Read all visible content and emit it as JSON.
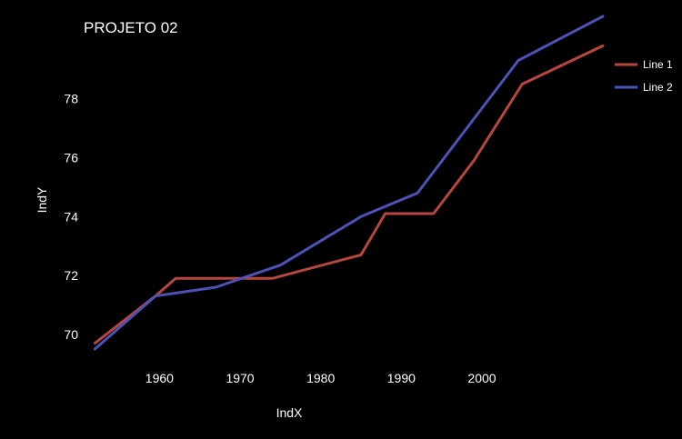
{
  "chart_data": {
    "type": "line",
    "title": "PROJETO 02",
    "xlabel": "IndX",
    "ylabel": "IndY",
    "xlim": [
      1951.5,
      2015
    ],
    "ylim": [
      69.5,
      80.4
    ],
    "xticks": [
      1960,
      1970,
      1980,
      1990,
      2000
    ],
    "yticks": [
      70,
      72,
      74,
      76,
      78
    ],
    "grid": false,
    "legend_position": "top-right",
    "series": [
      {
        "name": "Line 1",
        "color": "#B7463F",
        "points": [
          {
            "x": 1952,
            "y": 69.7
          },
          {
            "x": 1959.5,
            "y": 71.3
          },
          {
            "x": 1962,
            "y": 71.9
          },
          {
            "x": 1974,
            "y": 71.9
          },
          {
            "x": 1985,
            "y": 72.7
          },
          {
            "x": 1988,
            "y": 74.1
          },
          {
            "x": 1994,
            "y": 74.1
          },
          {
            "x": 1999,
            "y": 75.9
          },
          {
            "x": 2005,
            "y": 78.5
          },
          {
            "x": 2015,
            "y": 79.8
          }
        ]
      },
      {
        "name": "Line 2",
        "color": "#4C53B6",
        "points": [
          {
            "x": 1952,
            "y": 69.5
          },
          {
            "x": 1959.5,
            "y": 71.3
          },
          {
            "x": 1967,
            "y": 71.6
          },
          {
            "x": 1975,
            "y": 72.35
          },
          {
            "x": 1985,
            "y": 74.0
          },
          {
            "x": 1992,
            "y": 74.8
          },
          {
            "x": 2004.5,
            "y": 79.3
          },
          {
            "x": 2015,
            "y": 80.8
          }
        ]
      }
    ]
  }
}
